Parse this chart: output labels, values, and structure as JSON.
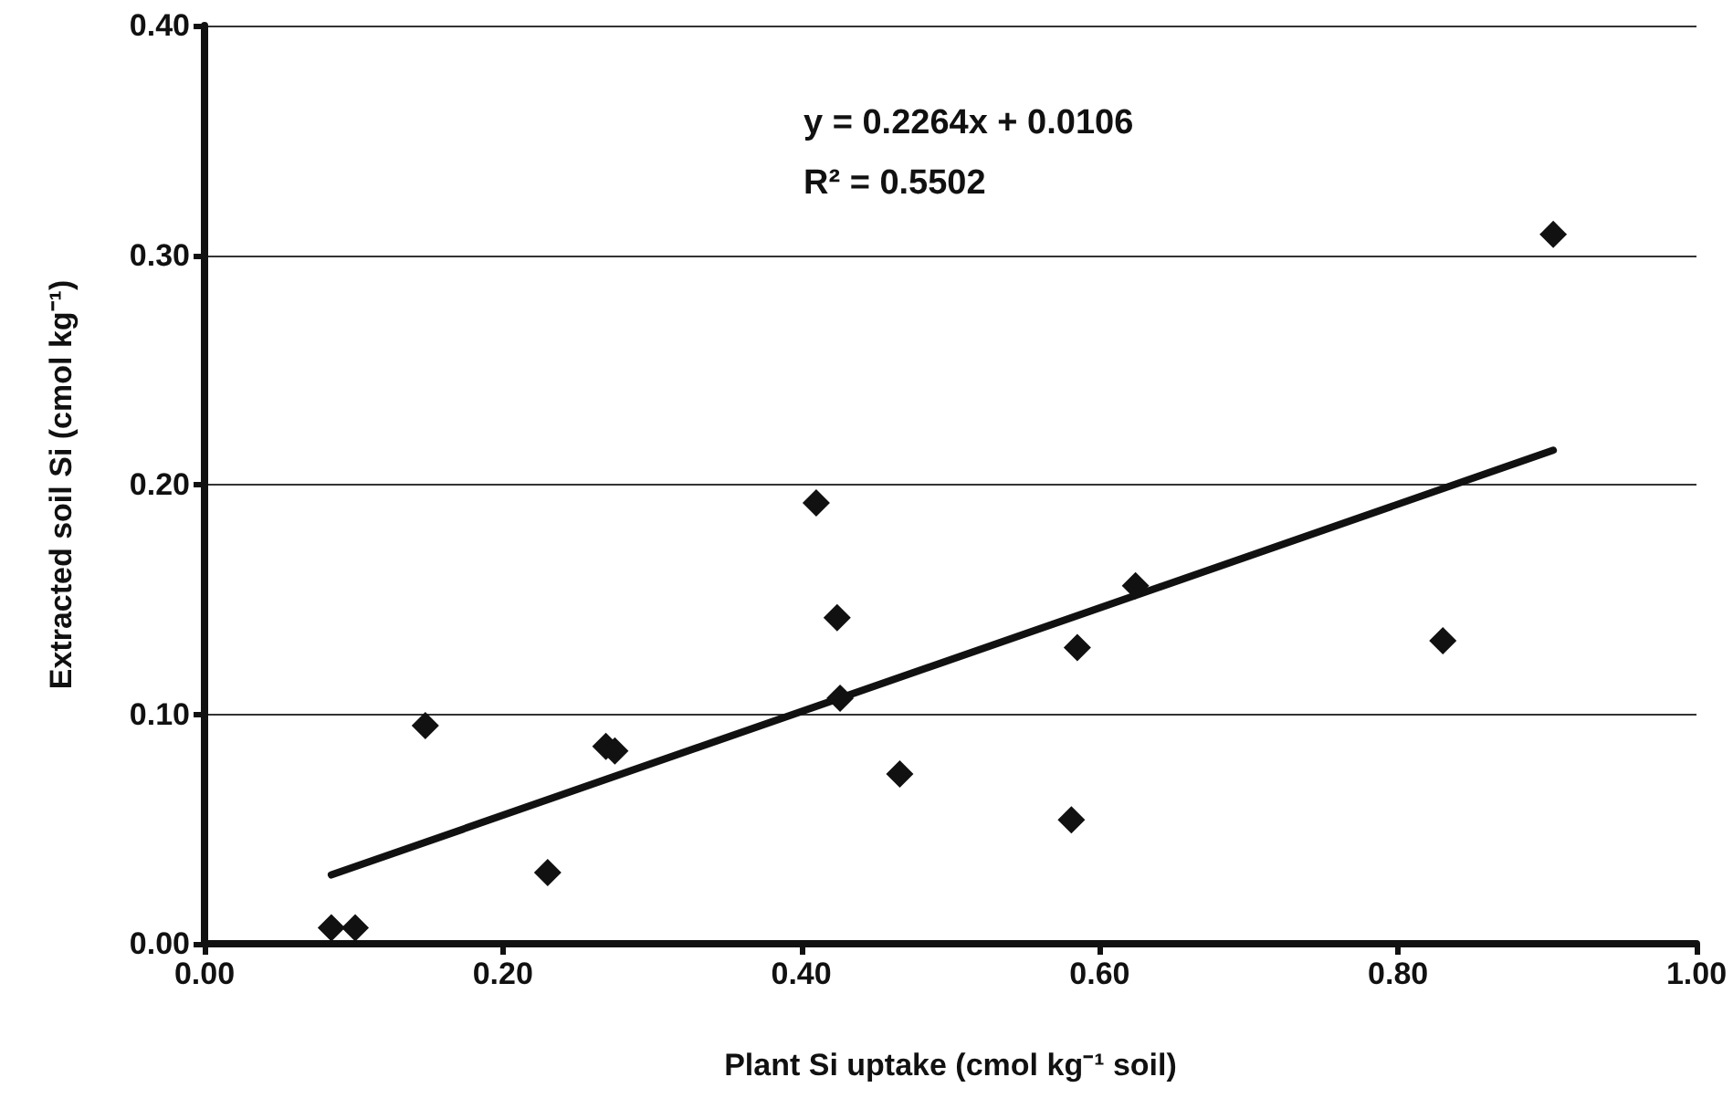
{
  "chart_data": {
    "type": "scatter",
    "xlabel": "Plant Si uptake (cmol kg⁻¹ soil)",
    "ylabel": "Extracted soil Si (cmol kg⁻¹)",
    "annotations": [
      "y = 0.2264x + 0.0106",
      "R² = 0.5502"
    ],
    "series": [
      {
        "color": "#111111",
        "marker": "diamond",
        "x": [
          0.085,
          0.101,
          0.148,
          0.23,
          0.269,
          0.275,
          0.41,
          0.424,
          0.426,
          0.466,
          0.581,
          0.585,
          0.624,
          0.83,
          0.904
        ],
        "values": [
          0.007,
          0.007,
          0.095,
          0.031,
          0.086,
          0.084,
          0.192,
          0.142,
          0.107,
          0.074,
          0.054,
          0.129,
          0.156,
          0.132,
          0.309
        ]
      },
      {
        "type": "line",
        "color": "#111111",
        "marker": "none",
        "line_style": "solid",
        "x": [
          0.085,
          0.904
        ],
        "values": [
          0.03,
          0.215
        ]
      }
    ],
    "xlim": [
      0,
      1
    ],
    "xticks": [
      {
        "value": 0,
        "label": "0.00"
      },
      {
        "value": 0.2,
        "label": "0.20"
      },
      {
        "value": 0.4,
        "label": "0.40"
      },
      {
        "value": 0.6,
        "label": "0.60"
      },
      {
        "value": 0.8,
        "label": "0.80"
      },
      {
        "value": 1,
        "label": "1.00"
      }
    ],
    "ylim": [
      0,
      0.4
    ],
    "yticks": [
      {
        "value": 0,
        "label": "0.00"
      },
      {
        "value": 0.1,
        "label": "0.10"
      },
      {
        "value": 0.2,
        "label": "0.20"
      },
      {
        "value": 0.3,
        "label": "0.30"
      },
      {
        "value": 0.4,
        "label": "0.40"
      }
    ],
    "grid": "y"
  }
}
